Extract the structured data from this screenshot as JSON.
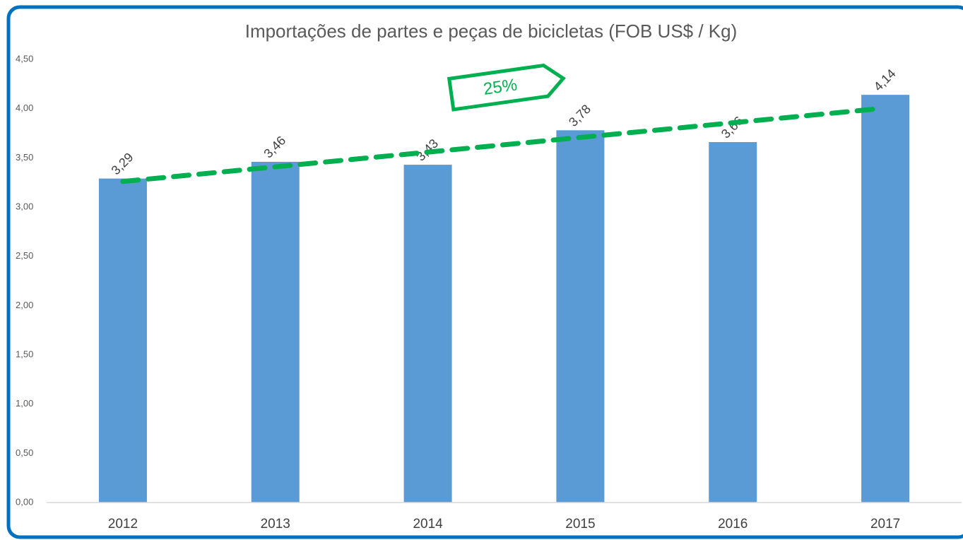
{
  "chart_data": {
    "type": "bar",
    "title": "Importações de partes e peças de bicicletas (FOB US$ / Kg)",
    "categories": [
      "2012",
      "2013",
      "2014",
      "2015",
      "2016",
      "2017"
    ],
    "values": [
      3.29,
      3.46,
      3.43,
      3.78,
      3.66,
      4.14
    ],
    "value_labels": [
      "3,29",
      "3,46",
      "3,43",
      "3,78",
      "3,66",
      "4,14"
    ],
    "color": "#5b9bd5",
    "ylim": [
      0,
      4.5
    ],
    "yticks": [
      {
        "value": 0,
        "label": "0,00"
      },
      {
        "value": 0.5,
        "label": "0,50"
      },
      {
        "value": 1,
        "label": "1,00"
      },
      {
        "value": 1.5,
        "label": "1,50"
      },
      {
        "value": 2,
        "label": "2,00"
      },
      {
        "value": 2.5,
        "label": "2,50"
      },
      {
        "value": 3,
        "label": "3,00"
      },
      {
        "value": 3.5,
        "label": "3,50"
      },
      {
        "value": 4,
        "label": "4,00"
      },
      {
        "value": 4.5,
        "label": "4,50"
      }
    ],
    "grid": false,
    "trendline": {
      "color": "#00b050",
      "values": [
        3.26,
        4.0
      ]
    },
    "annotation": "25%"
  }
}
